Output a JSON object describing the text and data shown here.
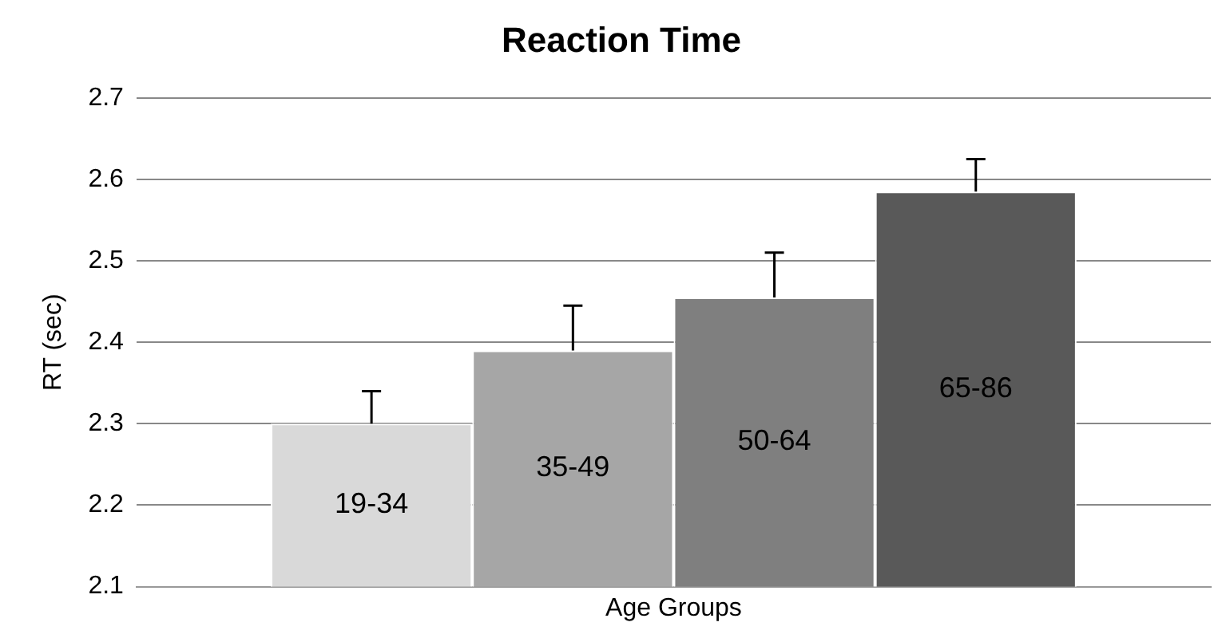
{
  "chart_data": {
    "type": "bar",
    "title": "Reaction Time",
    "xlabel": "Age Groups",
    "ylabel": "RT (sec)",
    "categories": [
      null
    ],
    "series": [
      {
        "name": "19-34",
        "color": "#d9d9d9",
        "values": [
          2.3
        ],
        "errors": [
          [
            2.3,
            2.34
          ]
        ]
      },
      {
        "name": "35-49",
        "color": "#a6a6a6",
        "values": [
          2.39
        ],
        "errors": [
          [
            2.39,
            2.445
          ]
        ]
      },
      {
        "name": "50-64",
        "color": "#7f7f7f",
        "values": [
          2.455
        ],
        "errors": [
          [
            2.455,
            2.51
          ]
        ]
      },
      {
        "name": "65-86",
        "color": "#595959",
        "values": [
          2.585
        ],
        "errors": [
          [
            2.585,
            2.625
          ]
        ]
      }
    ],
    "ylim": [
      2.1,
      2.7
    ],
    "yticks": [
      2.1,
      2.2,
      2.3,
      2.4,
      2.5,
      2.6,
      2.7
    ],
    "grid": "y",
    "legend": false,
    "tick_labels": "y"
  }
}
